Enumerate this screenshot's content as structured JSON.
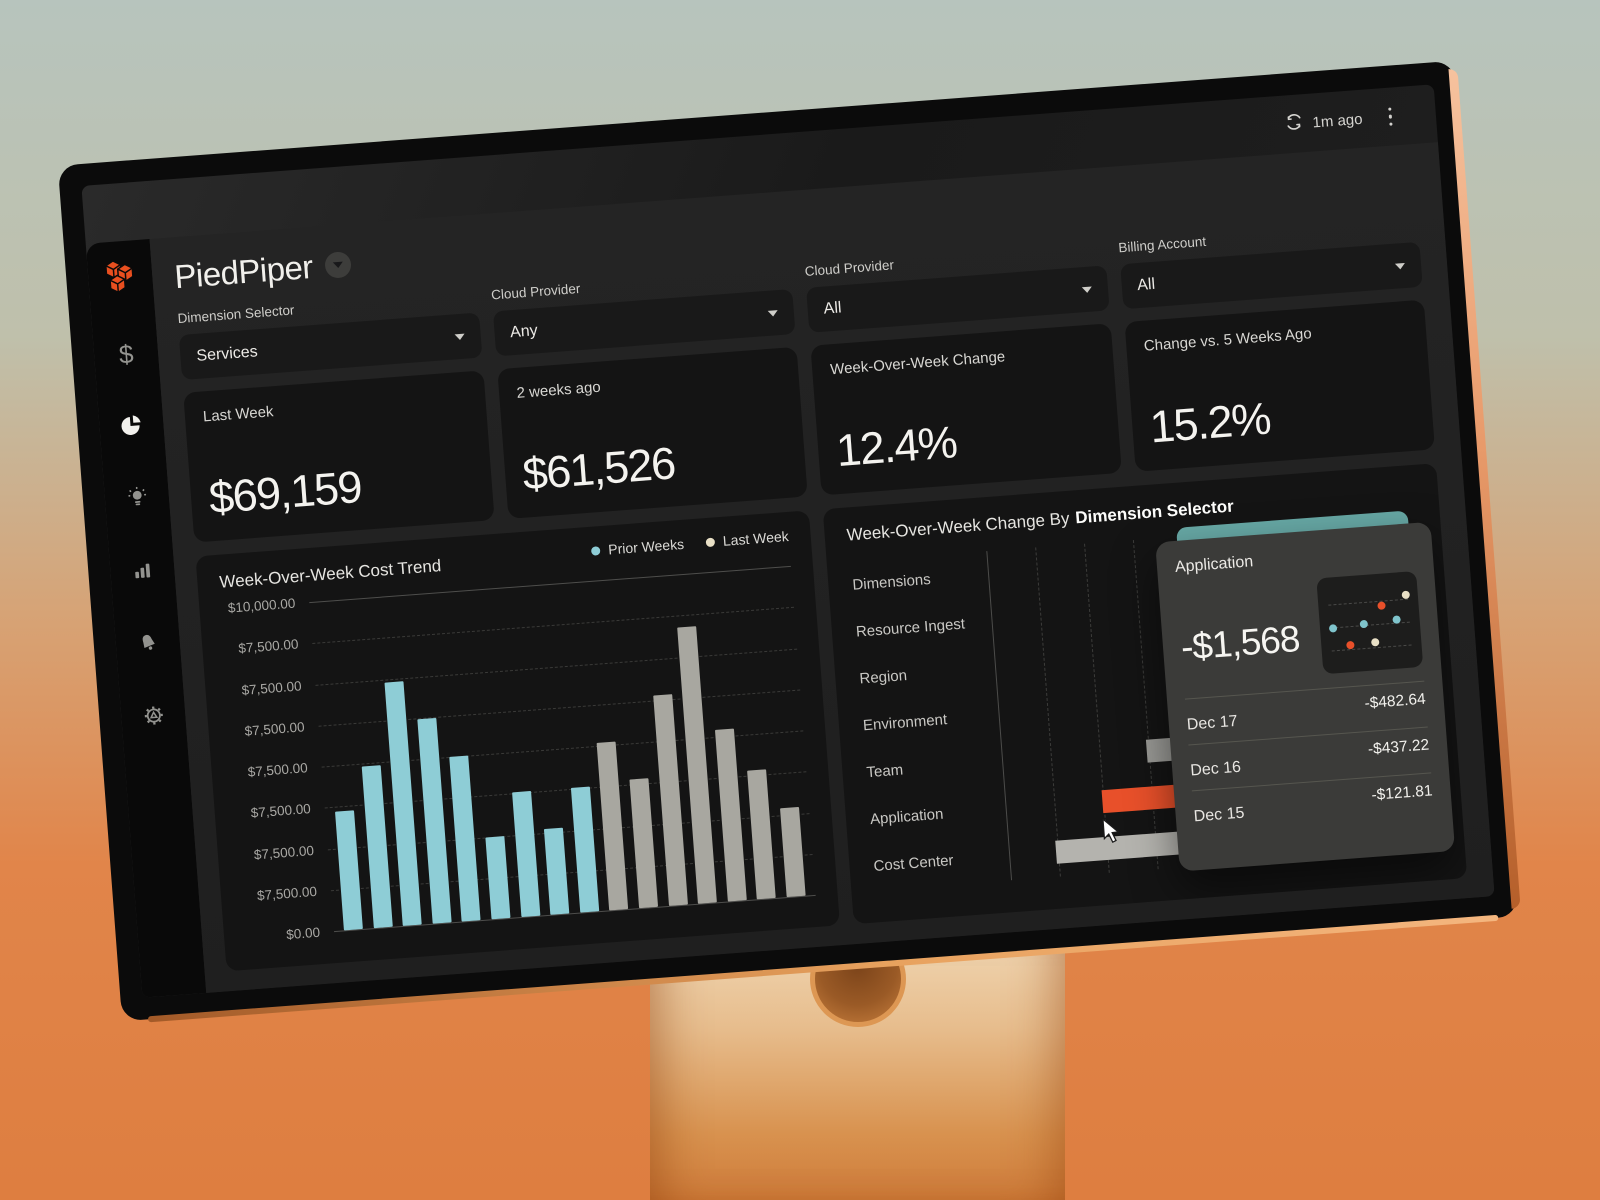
{
  "topbar": {
    "last_refresh": "1m ago"
  },
  "brand": {
    "name": "PiedPiper"
  },
  "sidebar": {
    "icons": [
      {
        "name": "logo"
      },
      {
        "name": "dollar"
      },
      {
        "name": "pie-chart",
        "active": true
      },
      {
        "name": "lightbulb"
      },
      {
        "name": "bar-chart"
      },
      {
        "name": "bell"
      },
      {
        "name": "gear"
      }
    ]
  },
  "filters": [
    {
      "label": "Dimension Selector",
      "value": "Services"
    },
    {
      "label": "Cloud Provider",
      "value": "Any"
    },
    {
      "label": "Cloud Provider",
      "value": "All"
    },
    {
      "label": "Billing Account",
      "value": "All"
    }
  ],
  "kpis": [
    {
      "label": "Last Week",
      "value": "$69,159"
    },
    {
      "label": "2 weeks ago",
      "value": "$61,526"
    },
    {
      "label": "Week-Over-Week Change",
      "value": "12.4%"
    },
    {
      "label": "Change vs. 5 Weeks Ago",
      "value": "15.2%"
    }
  ],
  "colors": {
    "teal": "#8ecdd6",
    "gray_bar": "#a8a7a0",
    "orange": "#e8502a",
    "cream": "#e9e0c6",
    "teal_accent": "#67a8a5"
  },
  "chart_data": [
    {
      "id": "cost-trend",
      "type": "bar",
      "title": "Week-Over-Week Cost Trend",
      "legend": [
        {
          "label": "Prior Weeks",
          "color": "#8ecdd6"
        },
        {
          "label": "Last Week",
          "color": "#e9e0c6"
        }
      ],
      "ylim": [
        0,
        10000
      ],
      "y_tick_labels": [
        "$10,000.00",
        "$7,500.00",
        "$7,500.00",
        "$7,500.00",
        "$7,500.00",
        "$7,500.00",
        "$7,500.00",
        "$7,500.00",
        "$0.00"
      ],
      "grid": "horizontal-dashed",
      "series": [
        {
          "name": "Prior Weeks",
          "color": "#8ecdd6",
          "values": [
            3600,
            4900,
            7400,
            6200,
            5000,
            2500,
            3800,
            2600,
            3800
          ]
        },
        {
          "name": "Last Week",
          "color": "#a8a7a0",
          "values": [
            5100,
            3900,
            6400,
            8400,
            5200,
            3900,
            2700
          ]
        }
      ]
    },
    {
      "id": "wow-change-by-dimension",
      "type": "bar-horizontal",
      "title": "Week-Over-Week Change By",
      "title_suffix": "Dimension Selector",
      "categories": [
        "Dimensions",
        "Resource Ingest",
        "Region",
        "Environment",
        "Team",
        "Application",
        "Cost Center"
      ],
      "visible_bars": [
        {
          "category": "Team",
          "approx_value": -870,
          "color": "#9a9a96"
        },
        {
          "category": "Application",
          "approx_value": -1568,
          "color": "#e8502a",
          "highlighted": true
        },
        {
          "category": "Cost Center",
          "approx_value": -2290,
          "color": "#b4b3ae"
        }
      ],
      "grid": "vertical-dashed"
    },
    {
      "id": "tooltip-sparkline",
      "type": "scatter",
      "dots": [
        {
          "x": 88,
          "y": 24,
          "color": "#e9e0c6"
        },
        {
          "x": 63,
          "y": 33,
          "color": "#e8502a"
        },
        {
          "x": 13,
          "y": 53,
          "color": "#7fc4cc"
        },
        {
          "x": 44,
          "y": 51,
          "color": "#7fc4cc"
        },
        {
          "x": 77,
          "y": 49,
          "color": "#7fc4cc"
        },
        {
          "x": 29,
          "y": 72,
          "color": "#e8502a"
        },
        {
          "x": 54,
          "y": 71,
          "color": "#e9e0c6"
        }
      ]
    }
  ],
  "tooltip": {
    "title": "Application",
    "value": "-$1,568",
    "rows": [
      {
        "label": "Dec 17",
        "value": "-$482.64"
      },
      {
        "label": "Dec 16",
        "value": "-$437.22"
      },
      {
        "label": "Dec 15",
        "value": "-$121.81"
      }
    ]
  }
}
